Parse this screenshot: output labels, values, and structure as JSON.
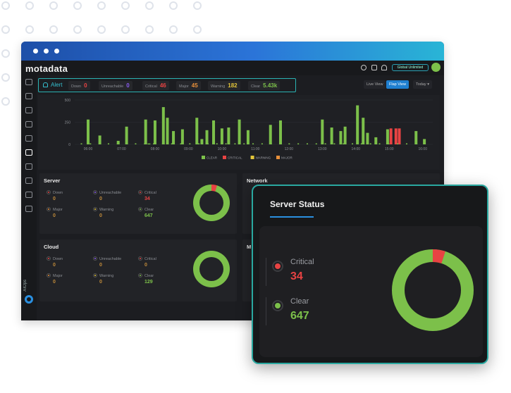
{
  "app": {
    "logo_text": "motadata",
    "user_button": "Global Unlimited",
    "theme": {
      "window_bg": "#1c1d21",
      "accent": "#1f7fd0",
      "teal": "#2ab3b3",
      "clear_green": "#7cc04a",
      "critical_red": "#e84343",
      "warning_yellow": "#e3c53a",
      "major_orange": "#e8903a",
      "unreachable_purple": "#8a5cf0"
    }
  },
  "sidebar": {
    "items": [
      "dashboard-icon",
      "monitor-icon",
      "chart-icon",
      "document-icon",
      "topology-icon",
      "alert-icon",
      "network-icon",
      "binoculars-icon",
      "report-icon",
      "settings-icon"
    ],
    "aiops_label": "AIOps"
  },
  "alert_bar": {
    "title": "Alert",
    "chips": [
      {
        "label": "Down",
        "value": "0",
        "color": "#e84343"
      },
      {
        "label": "Unreachable",
        "value": "0",
        "color": "#8a5cf0"
      },
      {
        "label": "Critical",
        "value": "46",
        "color": "#e84343"
      },
      {
        "label": "Major",
        "value": "45",
        "color": "#e8903a"
      },
      {
        "label": "Warning",
        "value": "182",
        "color": "#e3c53a"
      },
      {
        "label": "Clear",
        "value": "5.43k",
        "color": "#7cc04a"
      }
    ]
  },
  "view_buttons": {
    "live": "Live View",
    "flap": "Flap View",
    "range": "Today"
  },
  "chart_data": {
    "type": "bar",
    "ylim": [
      0,
      500
    ],
    "yticks": [
      "500",
      "250",
      "0"
    ],
    "xticks": [
      "06:00",
      "07:00",
      "08:00",
      "09:00",
      "10:00",
      "11:00",
      "12:00",
      "13:00",
      "14:00",
      "15:00",
      "16:00"
    ],
    "legend": [
      "CLEAR",
      "CRITICAL",
      "WARNING",
      "MAJOR"
    ],
    "legend_colors": [
      "#7cc04a",
      "#e84343",
      "#e3c53a",
      "#e8903a"
    ],
    "series": [
      {
        "name": "CLEAR",
        "color": "#7cc04a",
        "values": [
          0,
          290,
          0,
          0,
          0,
          0,
          0,
          0,
          0,
          0,
          110,
          0,
          40,
          0,
          0,
          0,
          210,
          0,
          0,
          0,
          0,
          0,
          0,
          0,
          0,
          280,
          10,
          0,
          0,
          0,
          0,
          0,
          0,
          280,
          0,
          0,
          0,
          420,
          10,
          0,
          0,
          0,
          150,
          0,
          0,
          0,
          0,
          0,
          0,
          170,
          0,
          0,
          0,
          310,
          40,
          0,
          0,
          140,
          0,
          0,
          0,
          290,
          0,
          180,
          0,
          0,
          0,
          0,
          200,
          0,
          290,
          0,
          0,
          0,
          0,
          180,
          0,
          0,
          0,
          0,
          0,
          0,
          0,
          0,
          0,
          0,
          0,
          230,
          0,
          290,
          0,
          0,
          0,
          0,
          0,
          0,
          0,
          0,
          0,
          0,
          0,
          0,
          0,
          0,
          0,
          0,
          0,
          0,
          0,
          0,
          0,
          0,
          0,
          0,
          0,
          0,
          0,
          0,
          0,
          0,
          0,
          0,
          0,
          0,
          0,
          0,
          0,
          0,
          0,
          0,
          0,
          0,
          0,
          0,
          140,
          0,
          0,
          0,
          0,
          0,
          0,
          0,
          0,
          0,
          0,
          0,
          0,
          0,
          0,
          140,
          0,
          0,
          0,
          0,
          0,
          0,
          0,
          0,
          0,
          0,
          0,
          0,
          0,
          0
        ]
      },
      {
        "name": "CRITICAL",
        "color": "#e84343",
        "values": [
          0,
          0,
          0,
          0,
          0,
          0,
          0,
          0,
          0,
          0,
          0,
          0,
          0,
          0,
          0,
          0,
          0,
          0,
          0,
          0,
          0,
          0,
          0,
          0,
          0,
          0,
          0,
          0,
          0,
          0,
          0,
          0,
          0,
          0,
          0,
          0,
          0,
          0,
          0,
          0,
          0,
          0,
          0,
          0,
          0,
          0,
          0,
          0,
          0,
          0,
          0,
          0,
          0,
          0,
          0,
          0,
          0,
          0,
          0,
          0,
          0,
          0,
          0,
          0,
          0,
          0,
          0,
          0,
          0,
          0,
          0,
          0,
          0,
          0,
          0,
          0,
          0,
          0,
          0,
          0,
          0,
          0,
          0,
          0,
          0,
          0,
          0,
          0,
          0,
          0,
          0,
          0,
          0,
          0,
          0,
          0,
          0,
          0,
          0,
          0,
          0,
          0,
          0,
          0,
          0,
          0,
          0,
          0,
          0,
          0,
          0,
          0,
          0,
          0,
          0,
          0,
          0,
          0,
          0,
          0,
          0,
          0,
          0,
          0,
          0,
          0,
          0,
          0,
          0,
          0,
          0,
          0,
          0,
          0,
          0,
          0,
          0,
          0,
          0,
          0,
          0,
          0,
          0,
          0,
          0,
          0,
          0,
          0,
          0,
          0,
          0,
          0,
          0,
          0,
          0,
          0,
          0,
          0,
          0,
          0,
          0,
          0
        ]
      }
    ]
  },
  "bars": [
    {
      "t": 6.0,
      "v": 280,
      "c": "#7cc04a"
    },
    {
      "t": 6.35,
      "v": 100,
      "c": "#7cc04a"
    },
    {
      "t": 6.9,
      "v": 40,
      "c": "#7cc04a"
    },
    {
      "t": 7.15,
      "v": 200,
      "c": "#7cc04a"
    },
    {
      "t": 7.72,
      "v": 280,
      "c": "#7cc04a"
    },
    {
      "t": 7.82,
      "v": 10,
      "c": "#7cc04a"
    },
    {
      "t": 8.0,
      "v": 270,
      "c": "#7cc04a"
    },
    {
      "t": 8.25,
      "v": 420,
      "c": "#7cc04a"
    },
    {
      "t": 8.37,
      "v": 300,
      "c": "#7cc04a"
    },
    {
      "t": 8.55,
      "v": 150,
      "c": "#7cc04a"
    },
    {
      "t": 8.82,
      "v": 170,
      "c": "#7cc04a"
    },
    {
      "t": 9.25,
      "v": 300,
      "c": "#7cc04a"
    },
    {
      "t": 9.4,
      "v": 60,
      "c": "#7cc04a"
    },
    {
      "t": 9.55,
      "v": 160,
      "c": "#7cc04a"
    },
    {
      "t": 9.75,
      "v": 270,
      "c": "#7cc04a"
    },
    {
      "t": 10.0,
      "v": 180,
      "c": "#7cc04a"
    },
    {
      "t": 10.2,
      "v": 190,
      "c": "#7cc04a"
    },
    {
      "t": 10.52,
      "v": 280,
      "c": "#7cc04a"
    },
    {
      "t": 10.78,
      "v": 160,
      "c": "#7cc04a"
    },
    {
      "t": 11.45,
      "v": 220,
      "c": "#7cc04a"
    },
    {
      "t": 11.75,
      "v": 270,
      "c": "#7cc04a"
    },
    {
      "t": 13.0,
      "v": 280,
      "c": "#7cc04a"
    },
    {
      "t": 13.28,
      "v": 190,
      "c": "#7cc04a"
    },
    {
      "t": 13.55,
      "v": 150,
      "c": "#7cc04a"
    },
    {
      "t": 13.68,
      "v": 200,
      "c": "#7cc04a"
    },
    {
      "t": 14.05,
      "v": 440,
      "c": "#7cc04a"
    },
    {
      "t": 14.22,
      "v": 300,
      "c": "#7cc04a"
    },
    {
      "t": 14.35,
      "v": 130,
      "c": "#7cc04a"
    },
    {
      "t": 14.6,
      "v": 80,
      "c": "#7cc04a"
    },
    {
      "t": 14.95,
      "v": 170,
      "c": "#7cc04a"
    },
    {
      "t": 15.05,
      "v": 180,
      "c": "#e84343"
    },
    {
      "t": 15.2,
      "v": 180,
      "c": "#e84343"
    },
    {
      "t": 15.3,
      "v": 180,
      "c": "#e84343"
    },
    {
      "t": 15.8,
      "v": 150,
      "c": "#7cc04a"
    },
    {
      "t": 16.05,
      "v": 60,
      "c": "#7cc04a"
    }
  ],
  "server_panel": {
    "title": "Server",
    "stats": [
      {
        "label": "Down",
        "value": "0",
        "color": "#e84343"
      },
      {
        "label": "Unreachable",
        "value": "0",
        "color": "#8a5cf0"
      },
      {
        "label": "Critical",
        "value": "34",
        "color": "#e84343"
      },
      {
        "label": "Major",
        "value": "0",
        "color": "#e8903a"
      },
      {
        "label": "Warning",
        "value": "0",
        "color": "#e3c53a"
      },
      {
        "label": "Clear",
        "value": "647",
        "color": "#7cc04a"
      }
    ]
  },
  "network_panel": {
    "title": "Network"
  },
  "cloud_panel": {
    "title": "Cloud",
    "stats": [
      {
        "label": "Down",
        "value": "0",
        "color": "#e84343"
      },
      {
        "label": "Unreachable",
        "value": "0",
        "color": "#8a5cf0"
      },
      {
        "label": "Critical",
        "value": "0",
        "color": "#e84343"
      },
      {
        "label": "Major",
        "value": "0",
        "color": "#e8903a"
      },
      {
        "label": "Warning",
        "value": "0",
        "color": "#e3c53a"
      },
      {
        "label": "Clear",
        "value": "129",
        "color": "#7cc04a"
      }
    ]
  },
  "fourth_panel": {
    "title": "M"
  },
  "status_card": {
    "title": "Server Status",
    "critical_label": "Critical",
    "critical_value": "34",
    "clear_label": "Clear",
    "clear_value": "647",
    "critical_fraction": 0.05
  }
}
